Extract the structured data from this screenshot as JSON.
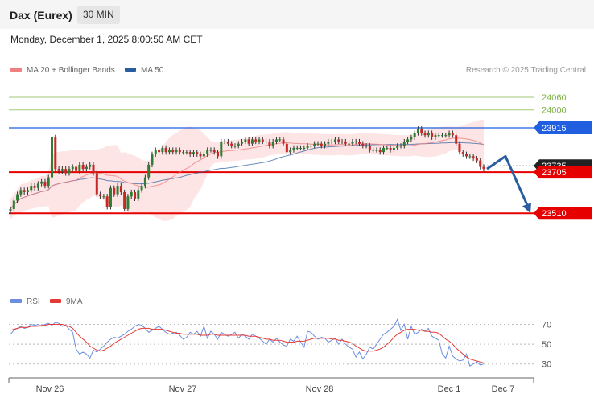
{
  "header": {
    "title": "Dax (Eurex)",
    "timeframe": "30 MIN",
    "datetime": "Monday, December 1, 2025 8:00:50 AM CET"
  },
  "legend": {
    "ma20_label": "MA 20 + Bollinger Bands",
    "ma50_label": "MA 50",
    "copyright": "Research © 2025 Trading Central",
    "rsi_label": "RSI",
    "rsi_ma_label": "9MA"
  },
  "colors": {
    "ma20": "#f08080",
    "ma50": "#2a5d9f",
    "bollinger_fill": "#fde2e2",
    "resistance": "#1f5fe0",
    "support": "#e60000",
    "target": "#7cb342",
    "current_price": "#222222",
    "rsi": "#6b8fe0",
    "rsi_ma": "#e53935",
    "arrow": "#2a5d9f"
  },
  "chart_data": {
    "type": "candlestick",
    "x_labels": [
      "Nov 26",
      "Nov 27",
      "Nov 28",
      "Dec 1",
      "Dec 7"
    ],
    "price_levels": [
      {
        "value": 24060,
        "label": "24060",
        "kind": "target"
      },
      {
        "value": 24000,
        "label": "24000",
        "kind": "target"
      },
      {
        "value": 23915,
        "label": "23915",
        "kind": "resistance"
      },
      {
        "value": 23735,
        "label": "23735",
        "kind": "current"
      },
      {
        "value": 23705,
        "label": "23705",
        "kind": "support"
      },
      {
        "value": 23510,
        "label": "23510",
        "kind": "support"
      }
    ],
    "ylim": [
      23160,
      24140
    ],
    "close": [
      23530,
      23570,
      23600,
      23620,
      23610,
      23620,
      23640,
      23630,
      23650,
      23660,
      23640,
      23680,
      23870,
      23720,
      23710,
      23720,
      23700,
      23720,
      23730,
      23710,
      23740,
      23720,
      23730,
      23740,
      23700,
      23600,
      23590,
      23590,
      23540,
      23630,
      23600,
      23640,
      23610,
      23530,
      23590,
      23610,
      23580,
      23620,
      23640,
      23680,
      23740,
      23790,
      23810,
      23800,
      23820,
      23800,
      23810,
      23800,
      23810,
      23800,
      23800,
      23800,
      23790,
      23800,
      23790,
      23780,
      23790,
      23810,
      23810,
      23800,
      23780,
      23850,
      23850,
      23840,
      23830,
      23830,
      23840,
      23850,
      23860,
      23840,
      23860,
      23850,
      23860,
      23850,
      23850,
      23830,
      23850,
      23860,
      23860,
      23840,
      23800,
      23810,
      23820,
      23820,
      23820,
      23820,
      23830,
      23830,
      23840,
      23840,
      23830,
      23840,
      23850,
      23850,
      23860,
      23850,
      23850,
      23840,
      23840,
      23850,
      23850,
      23840,
      23830,
      23830,
      23810,
      23810,
      23810,
      23800,
      23820,
      23820,
      23810,
      23820,
      23830,
      23830,
      23850,
      23860,
      23870,
      23890,
      23910,
      23890,
      23880,
      23890,
      23870,
      23880,
      23880,
      23880,
      23880,
      23890,
      23880,
      23840,
      23800,
      23790,
      23780,
      23780,
      23770,
      23760,
      23730,
      23720
    ],
    "rsi": [
      60,
      64,
      66,
      68,
      66,
      67,
      70,
      69,
      70,
      68,
      70,
      71,
      69,
      72,
      71,
      68,
      69,
      65,
      62,
      45,
      40,
      42,
      40,
      36,
      44,
      42,
      45,
      48,
      52,
      55,
      57,
      56,
      58,
      60,
      63,
      65,
      68,
      70,
      69,
      66,
      62,
      64,
      66,
      68,
      65,
      62,
      60,
      61,
      62,
      59,
      55,
      57,
      62,
      60,
      63,
      58,
      68,
      56,
      63,
      60,
      55,
      62,
      60,
      58,
      60,
      62,
      56,
      60,
      58,
      55,
      60,
      58,
      56,
      53,
      50,
      55,
      52,
      56,
      52,
      49,
      48,
      55,
      53,
      58,
      52,
      47,
      63,
      62,
      58,
      55,
      57,
      56,
      52,
      54,
      56,
      50,
      55,
      50,
      47,
      45,
      37,
      42,
      35,
      40,
      47,
      45,
      50,
      55,
      60,
      62,
      65,
      68,
      75,
      64,
      70,
      55,
      68,
      60,
      62,
      65,
      63,
      66,
      58,
      56,
      54,
      40,
      36,
      48,
      38,
      35,
      33,
      34,
      40,
      28,
      30,
      32,
      29,
      30
    ],
    "rsi_ma": [
      64,
      65,
      66,
      67,
      67,
      67,
      68,
      68,
      68,
      69,
      69,
      70,
      70,
      70,
      70,
      70,
      69,
      68,
      66,
      62,
      58,
      55,
      52,
      48,
      46,
      44,
      43,
      44,
      46,
      48,
      51,
      53,
      55,
      57,
      59,
      61,
      63,
      65,
      66,
      66,
      66,
      65,
      65,
      65,
      65,
      64,
      63,
      62,
      61,
      61,
      60,
      60,
      60,
      60,
      60,
      59,
      59,
      59,
      60,
      60,
      59,
      59,
      59,
      59,
      59,
      59,
      59,
      59,
      59,
      58,
      58,
      58,
      57,
      56,
      55,
      55,
      54,
      54,
      54,
      53,
      52,
      52,
      52,
      53,
      53,
      53,
      54,
      55,
      56,
      56,
      56,
      56,
      56,
      55,
      55,
      54,
      54,
      53,
      52,
      51,
      48,
      46,
      44,
      43,
      43,
      43,
      44,
      45,
      47,
      50,
      53,
      57,
      60,
      62,
      64,
      65,
      65,
      65,
      64,
      64,
      63,
      63,
      62,
      62,
      61,
      58,
      55,
      53,
      50,
      46,
      43,
      40,
      37,
      35,
      34,
      33,
      32,
      31
    ],
    "rsi_levels": [
      70,
      50,
      30
    ],
    "rsi_ylim": [
      20,
      85
    ],
    "projection": {
      "from": 23720,
      "peak": 23780,
      "to": 23510
    }
  }
}
